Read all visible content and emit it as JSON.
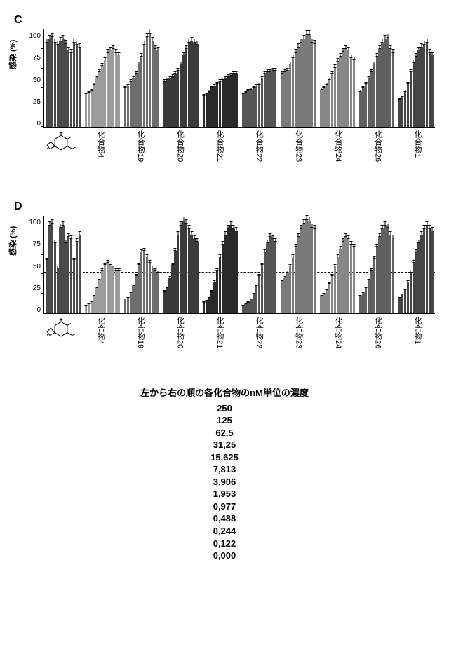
{
  "panels": [
    "C",
    "D"
  ],
  "y_axis": {
    "label": "感染 (%)",
    "ticks": [
      0,
      25,
      50,
      75,
      100
    ],
    "min": 0,
    "max": 125
  },
  "x_labels": [
    "",
    "化合物4",
    "化合物19",
    "化合物20",
    "化合物21",
    "化合物22",
    "化合物23",
    "化合物24",
    "化合物26",
    "化合物1"
  ],
  "group_colors": [
    "#4a4a4a",
    "#9c9c9c",
    "#6e6e6e",
    "#3a3a3a",
    "#2a2a2a",
    "#555555",
    "#7a7a7a",
    "#888888",
    "#606060",
    "#454545"
  ],
  "chartC": {
    "ref_line": null,
    "groups": [
      [
        108,
        112,
        115,
        108,
        105,
        110,
        112,
        106,
        98,
        95,
        108,
        105,
        102
      ],
      [
        42,
        44,
        46,
        54,
        62,
        70,
        78,
        85,
        95,
        98,
        100,
        95,
        92
      ],
      [
        50,
        52,
        58,
        62,
        68,
        80,
        90,
        105,
        115,
        120,
        110,
        100,
        98
      ],
      [
        58,
        60,
        62,
        64,
        68,
        72,
        80,
        92,
        100,
        108,
        110,
        108,
        105
      ],
      [
        40,
        42,
        45,
        50,
        52,
        55,
        58,
        60,
        62,
        64,
        66,
        68,
        68
      ],
      [
        42,
        44,
        46,
        48,
        50,
        52,
        54,
        62,
        68,
        70,
        70,
        72,
        72
      ],
      [
        68,
        70,
        72,
        80,
        88,
        95,
        102,
        108,
        112,
        118,
        118,
        108,
        106
      ],
      [
        48,
        50,
        54,
        60,
        68,
        76,
        84,
        90,
        96,
        100,
        98,
        88,
        86
      ],
      [
        45,
        50,
        55,
        62,
        70,
        80,
        90,
        100,
        108,
        112,
        114,
        100,
        95
      ],
      [
        35,
        38,
        45,
        55,
        70,
        82,
        90,
        98,
        102,
        105,
        108,
        95,
        92
      ]
    ]
  },
  "chartD": {
    "ref_line": 52,
    "groups": [
      [
        68,
        112,
        115,
        90,
        58,
        110,
        112,
        90,
        98,
        95,
        68,
        92,
        100
      ],
      [
        10,
        12,
        15,
        22,
        32,
        42,
        55,
        62,
        65,
        60,
        58,
        55,
        55
      ],
      [
        18,
        20,
        26,
        35,
        48,
        62,
        78,
        80,
        72,
        65,
        58,
        55,
        52
      ],
      [
        28,
        32,
        45,
        62,
        80,
        100,
        112,
        118,
        115,
        108,
        100,
        95,
        92
      ],
      [
        14,
        16,
        20,
        28,
        40,
        55,
        72,
        88,
        100,
        108,
        112,
        108,
        105
      ],
      [
        10,
        12,
        14,
        18,
        25,
        35,
        48,
        62,
        78,
        90,
        98,
        95,
        92
      ],
      [
        40,
        45,
        52,
        60,
        72,
        85,
        98,
        108,
        115,
        120,
        118,
        110,
        108
      ],
      [
        22,
        25,
        30,
        38,
        48,
        60,
        72,
        82,
        92,
        98,
        95,
        88,
        85
      ],
      [
        22,
        26,
        32,
        42,
        55,
        70,
        85,
        98,
        108,
        112,
        110,
        100,
        96
      ],
      [
        20,
        24,
        30,
        40,
        52,
        65,
        78,
        90,
        100,
        108,
        112,
        108,
        105
      ]
    ]
  },
  "concentration_table": {
    "title": "左から右の順の各化合物のnM単位の濃度",
    "values": [
      "250",
      "125",
      "62,5",
      "31,25",
      "15,625",
      "7,813",
      "3,906",
      "1,953",
      "0,977",
      "0,488",
      "0,244",
      "0,122",
      "0,000"
    ]
  },
  "style": {
    "background": "#ffffff",
    "axis_color": "#000000",
    "err_height_pct": 5
  }
}
